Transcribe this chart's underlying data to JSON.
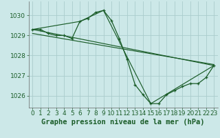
{
  "background_color": "#cce8e8",
  "grid_color": "#aacccc",
  "line_color": "#1a5c28",
  "xlabel": "Graphe pression niveau de la mer (hPa)",
  "xlabel_fontsize": 7.5,
  "tick_fontsize": 6.5,
  "ylim": [
    1025.4,
    1030.7
  ],
  "yticks": [
    1026,
    1027,
    1028,
    1029,
    1030
  ],
  "xlim": [
    -0.5,
    23.5
  ],
  "xticks": [
    0,
    1,
    2,
    3,
    4,
    5,
    6,
    7,
    8,
    9,
    10,
    11,
    12,
    13,
    14,
    15,
    16,
    17,
    18,
    19,
    20,
    21,
    22,
    23
  ],
  "series": [
    {
      "x": [
        0,
        1,
        2,
        3,
        4,
        5,
        6,
        7,
        8,
        9,
        10,
        11,
        12,
        13,
        14,
        15,
        16,
        17,
        18,
        19,
        20,
        21,
        22,
        23
      ],
      "y": [
        1029.3,
        1029.3,
        1029.1,
        1029.0,
        1029.0,
        1028.85,
        1029.7,
        1029.85,
        1030.15,
        1030.25,
        1029.75,
        1028.85,
        1027.8,
        1026.55,
        1026.05,
        1025.6,
        1025.6,
        1026.05,
        1026.25,
        1026.45,
        1026.6,
        1026.6,
        1026.9,
        1027.5
      ],
      "has_markers": true
    },
    {
      "x": [
        0,
        23
      ],
      "y": [
        1029.3,
        1027.5
      ],
      "has_markers": false
    },
    {
      "x": [
        0,
        6,
        9,
        15,
        23
      ],
      "y": [
        1029.3,
        1029.7,
        1030.25,
        1025.6,
        1027.5
      ],
      "has_markers": false
    },
    {
      "x": [
        0,
        23
      ],
      "y": [
        1029.1,
        1027.55
      ],
      "has_markers": false
    }
  ]
}
